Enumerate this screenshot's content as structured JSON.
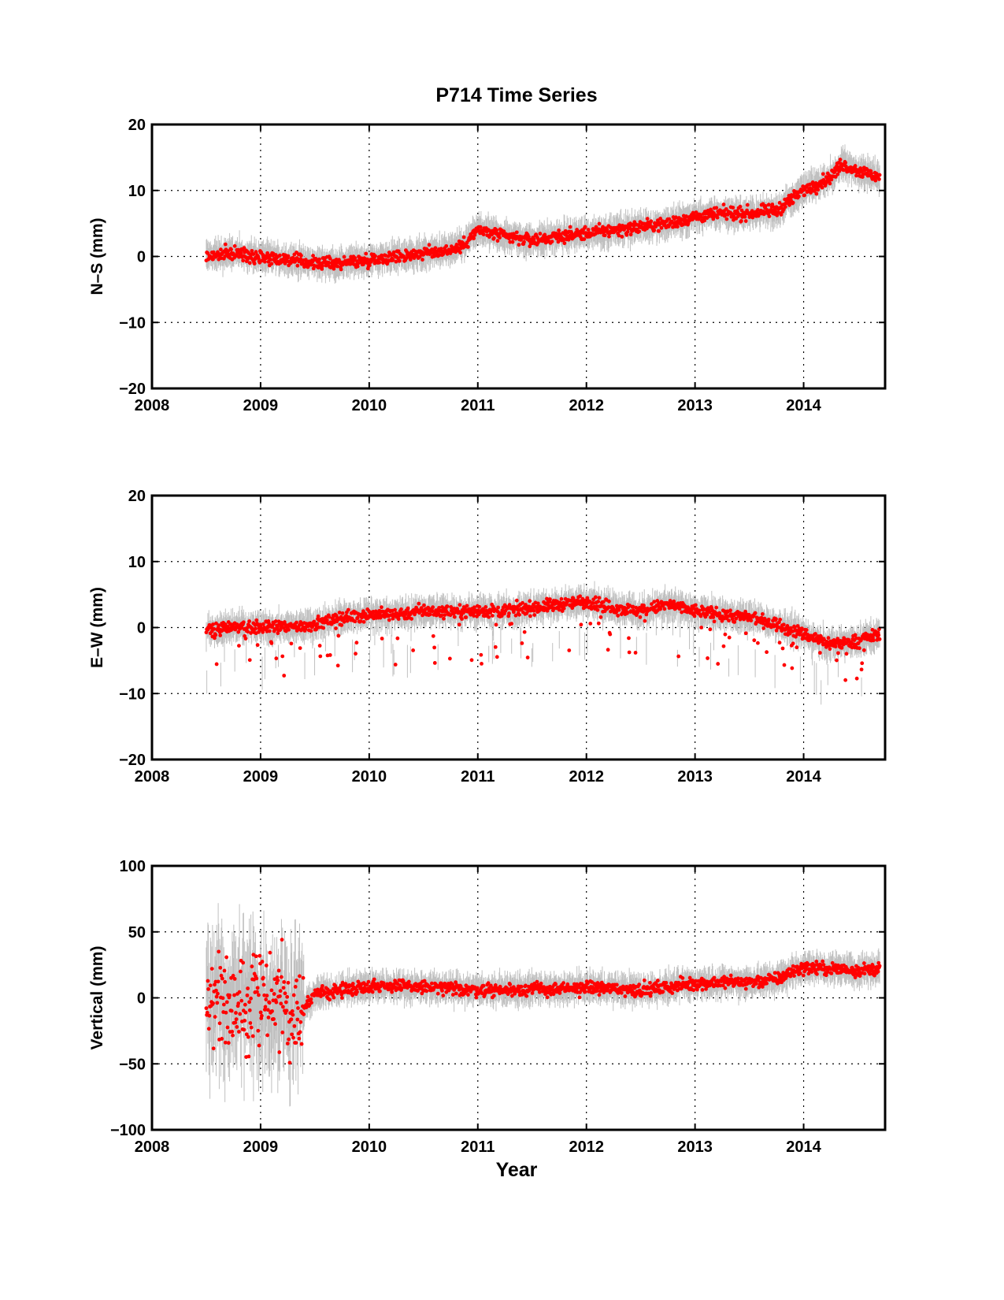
{
  "figure": {
    "title": "P714 Time Series",
    "xlabel": "Year"
  },
  "colors": {
    "points": "#ff0000",
    "error_bars": "#c0c0c0",
    "axes": "#000000"
  },
  "chart_data": [
    {
      "type": "scatter",
      "title": "P714 Time Series",
      "ylabel": "N–S (mm)",
      "xlabel": "",
      "xlim": [
        2008,
        2014.75
      ],
      "ylim": [
        -20,
        20
      ],
      "xticks": [
        2008,
        2009,
        2010,
        2011,
        2012,
        2013,
        2014
      ],
      "yticks": [
        20,
        10,
        0,
        -10,
        -20
      ],
      "grid": true,
      "error_bars": true,
      "series": [
        {
          "x": [
            2008.5,
            2008.75,
            2009.0,
            2009.25,
            2009.5,
            2009.75,
            2010.0,
            2010.25,
            2010.5,
            2010.75,
            2010.85,
            2011.0,
            2011.25,
            2011.5,
            2011.75,
            2012.0,
            2012.25,
            2012.5,
            2012.75,
            2013.0,
            2013.25,
            2013.5,
            2013.75,
            2014.0,
            2014.25,
            2014.35,
            2014.5,
            2014.7
          ],
          "y": [
            0,
            0.5,
            0,
            -0.5,
            -1,
            -1,
            -0.5,
            0,
            0.5,
            1,
            1.5,
            4,
            3,
            2.5,
            3,
            3.5,
            4,
            4.5,
            5,
            6,
            6.5,
            6.5,
            7,
            10,
            12,
            14,
            13,
            12
          ]
        }
      ]
    },
    {
      "type": "scatter",
      "ylabel": "E–W (mm)",
      "xlabel": "",
      "xlim": [
        2008,
        2014.75
      ],
      "ylim": [
        -20,
        20
      ],
      "xticks": [
        2008,
        2009,
        2010,
        2011,
        2012,
        2013,
        2014
      ],
      "yticks": [
        20,
        10,
        0,
        -10,
        -20
      ],
      "grid": true,
      "error_bars": true,
      "series": [
        {
          "x": [
            2008.5,
            2008.75,
            2009.0,
            2009.25,
            2009.5,
            2009.75,
            2010.0,
            2010.25,
            2010.5,
            2010.75,
            2011.0,
            2011.25,
            2011.5,
            2011.75,
            2012.0,
            2012.25,
            2012.5,
            2012.75,
            2013.0,
            2013.25,
            2013.5,
            2013.75,
            2014.0,
            2014.25,
            2014.5,
            2014.7
          ],
          "y": [
            -0.5,
            0,
            0,
            0,
            0.5,
            1.5,
            2,
            2,
            2.5,
            2.5,
            2.5,
            2.5,
            3,
            3.5,
            4,
            3,
            2.5,
            3.5,
            2.5,
            2,
            1.5,
            0.5,
            -1,
            -2.5,
            -2,
            -1
          ]
        }
      ]
    },
    {
      "type": "scatter",
      "ylabel": "Vertical (mm)",
      "xlabel": "Year",
      "xlim": [
        2008,
        2014.75
      ],
      "ylim": [
        -100,
        100
      ],
      "xticks": [
        2008,
        2009,
        2010,
        2011,
        2012,
        2013,
        2014
      ],
      "yticks": [
        100,
        50,
        0,
        -50,
        -100
      ],
      "grid": true,
      "error_bars": true,
      "series": [
        {
          "x": [
            2008.5,
            2008.75,
            2009.0,
            2009.25,
            2009.38,
            2009.5,
            2009.75,
            2010.0,
            2010.25,
            2010.5,
            2010.75,
            2011.0,
            2011.25,
            2011.5,
            2011.75,
            2012.0,
            2012.25,
            2012.5,
            2012.75,
            2013.0,
            2013.25,
            2013.5,
            2013.75,
            2013.9,
            2014.0,
            2014.25,
            2014.5,
            2014.7
          ],
          "y": [
            0,
            -3,
            0,
            -5,
            -10,
            3,
            6,
            9,
            9,
            8,
            7,
            6,
            6,
            7,
            6,
            8,
            7,
            6,
            8,
            11,
            12,
            12,
            14,
            20,
            23,
            22,
            21,
            22
          ]
        }
      ]
    }
  ]
}
